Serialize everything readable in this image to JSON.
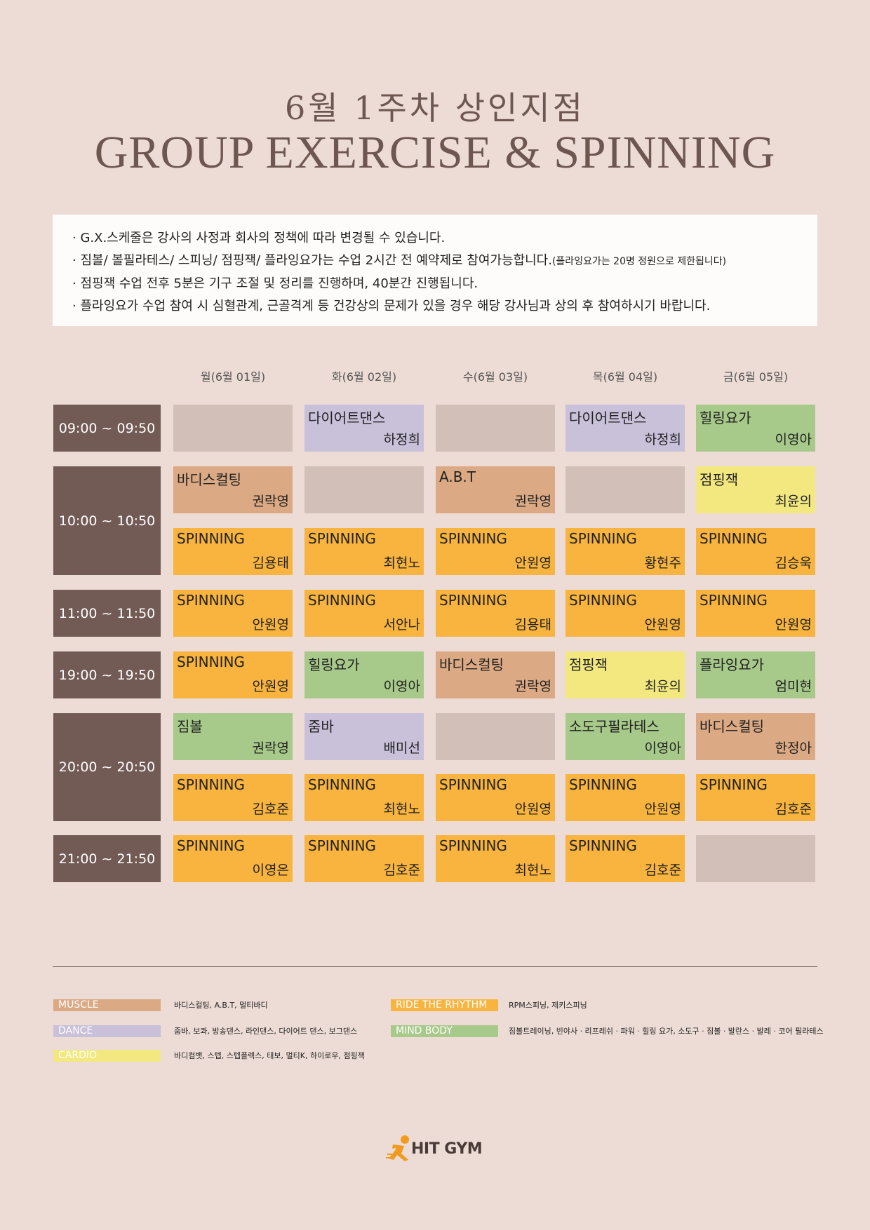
{
  "title_ko": "6월 1주차 상인지점",
  "title_en": "GROUP EXERCISE & SPINNING",
  "notices": [
    "· G.X.스케줄은 강사의 사정과 회사의 정책에 따라 변경될 수 있습니다.",
    "· 짐볼/ 볼필라테스/ 스피닝/ 점핑잭/ 플라잉요가는 수업 2시간 전 예약제로 참여가능합니다.",
    "· 점핑잭 수업 전후 5분은 기구 조절 및 정리를 진행하며, 40분간 진행됩니다.",
    "· 플라잉요가 수업 참여 시 심혈관계, 근골격계 등 건강상의 문제가 있을 경우 해당 강사님과 상의 후 참여하시기 바랍니다."
  ],
  "notice_small": "(플라잉요가는 20명 정원으로 제한됩니다)",
  "days": [
    "월(6월 01일)",
    "화(6월 02일)",
    "수(6월 03일)",
    "목(6월 04일)",
    "금(6월 05일)"
  ],
  "times": [
    "09:00 ~ 09:50",
    "10:00 ~ 10:50",
    "11:00 ~ 11:50",
    "19:00 ~ 19:50",
    "20:00 ~ 20:50",
    "21:00 ~ 21:50"
  ],
  "colors": {
    "muscle": "#dba983",
    "dance": "#c9c0da",
    "cardio": "#f2e87f",
    "rhythm": "#f8b43e",
    "mind": "#a7c98a",
    "empty": "#d2bfb7",
    "time": "#725a55"
  },
  "rows": [
    [
      {
        "cls": "",
        "ins": "",
        "cat": "empty"
      },
      {
        "cls": "다이어트댄스",
        "ins": "하정희",
        "cat": "dance"
      },
      {
        "cls": "",
        "ins": "",
        "cat": "empty"
      },
      {
        "cls": "다이어트댄스",
        "ins": "하정희",
        "cat": "dance"
      },
      {
        "cls": "힐링요가",
        "ins": "이영아",
        "cat": "mind"
      }
    ],
    [
      {
        "cls": "바디스컬팅",
        "ins": "권락영",
        "cat": "muscle"
      },
      {
        "cls": "",
        "ins": "",
        "cat": "empty"
      },
      {
        "cls": "A.B.T",
        "ins": "권락영",
        "cat": "muscle"
      },
      {
        "cls": "",
        "ins": "",
        "cat": "empty"
      },
      {
        "cls": "점핑잭",
        "ins": "최윤의",
        "cat": "cardio"
      }
    ],
    [
      {
        "cls": "SPINNING",
        "ins": "김용태",
        "cat": "rhythm"
      },
      {
        "cls": "SPINNING",
        "ins": "최현노",
        "cat": "rhythm"
      },
      {
        "cls": "SPINNING",
        "ins": "안원영",
        "cat": "rhythm"
      },
      {
        "cls": "SPINNING",
        "ins": "황현주",
        "cat": "rhythm"
      },
      {
        "cls": "SPINNING",
        "ins": "김승욱",
        "cat": "rhythm"
      }
    ],
    [
      {
        "cls": "SPINNING",
        "ins": "안원영",
        "cat": "rhythm"
      },
      {
        "cls": "SPINNING",
        "ins": "서안나",
        "cat": "rhythm"
      },
      {
        "cls": "SPINNING",
        "ins": "김용태",
        "cat": "rhythm"
      },
      {
        "cls": "SPINNING",
        "ins": "안원영",
        "cat": "rhythm"
      },
      {
        "cls": "SPINNING",
        "ins": "안원영",
        "cat": "rhythm"
      }
    ],
    [
      {
        "cls": "SPINNING",
        "ins": "안원영",
        "cat": "rhythm"
      },
      {
        "cls": "힐링요가",
        "ins": "이영아",
        "cat": "mind"
      },
      {
        "cls": "바디스컬팅",
        "ins": "권락영",
        "cat": "muscle"
      },
      {
        "cls": "점핑잭",
        "ins": "최윤의",
        "cat": "cardio"
      },
      {
        "cls": "플라잉요가",
        "ins": "엄미현",
        "cat": "mind"
      }
    ],
    [
      {
        "cls": "짐볼",
        "ins": "권락영",
        "cat": "mind"
      },
      {
        "cls": "줌바",
        "ins": "배미선",
        "cat": "dance"
      },
      {
        "cls": "",
        "ins": "",
        "cat": "empty"
      },
      {
        "cls": "소도구필라테스",
        "ins": "이영아",
        "cat": "mind"
      },
      {
        "cls": "바디스컬팅",
        "ins": "한정아",
        "cat": "muscle"
      }
    ],
    [
      {
        "cls": "SPINNING",
        "ins": "김호준",
        "cat": "rhythm"
      },
      {
        "cls": "SPINNING",
        "ins": "최현노",
        "cat": "rhythm"
      },
      {
        "cls": "SPINNING",
        "ins": "안원영",
        "cat": "rhythm"
      },
      {
        "cls": "SPINNING",
        "ins": "안원영",
        "cat": "rhythm"
      },
      {
        "cls": "SPINNING",
        "ins": "김호준",
        "cat": "rhythm"
      }
    ],
    [
      {
        "cls": "SPINNING",
        "ins": "이영은",
        "cat": "rhythm"
      },
      {
        "cls": "SPINNING",
        "ins": "김호준",
        "cat": "rhythm"
      },
      {
        "cls": "SPINNING",
        "ins": "최현노",
        "cat": "rhythm"
      },
      {
        "cls": "SPINNING",
        "ins": "김호준",
        "cat": "rhythm"
      },
      {
        "cls": "",
        "ins": "",
        "cat": "empty"
      }
    ]
  ],
  "legend": [
    {
      "label": "MUSCLE",
      "desc": "바디스컬팅, A.B.T, 멀티바디",
      "cat": "muscle"
    },
    {
      "label": "RIDE THE RHYTHM",
      "desc": "RPM스피닝, 제키스피닝",
      "cat": "rhythm"
    },
    {
      "label": "DANCE",
      "desc": "줌바, 보콰, 방송댄스, 라인댄스, 다이어트 댄스, 보그댄스",
      "cat": "dance"
    },
    {
      "label": "MIND BODY",
      "desc": "짐볼트레이닝, 빈야사 · 리프레쉬 · 파워 · 힐링 요가, 소도구 · 짐볼 · 발란스 · 발레 · 코어 필라테스",
      "cat": "mind"
    },
    {
      "label": "CARDIO",
      "desc": "바디컴뱃, 스텝, 스텝플렉스, 태보, 멀티K, 하이로우, 점핑잭",
      "cat": "cardio"
    }
  ],
  "logo_text": "HIT GYM"
}
